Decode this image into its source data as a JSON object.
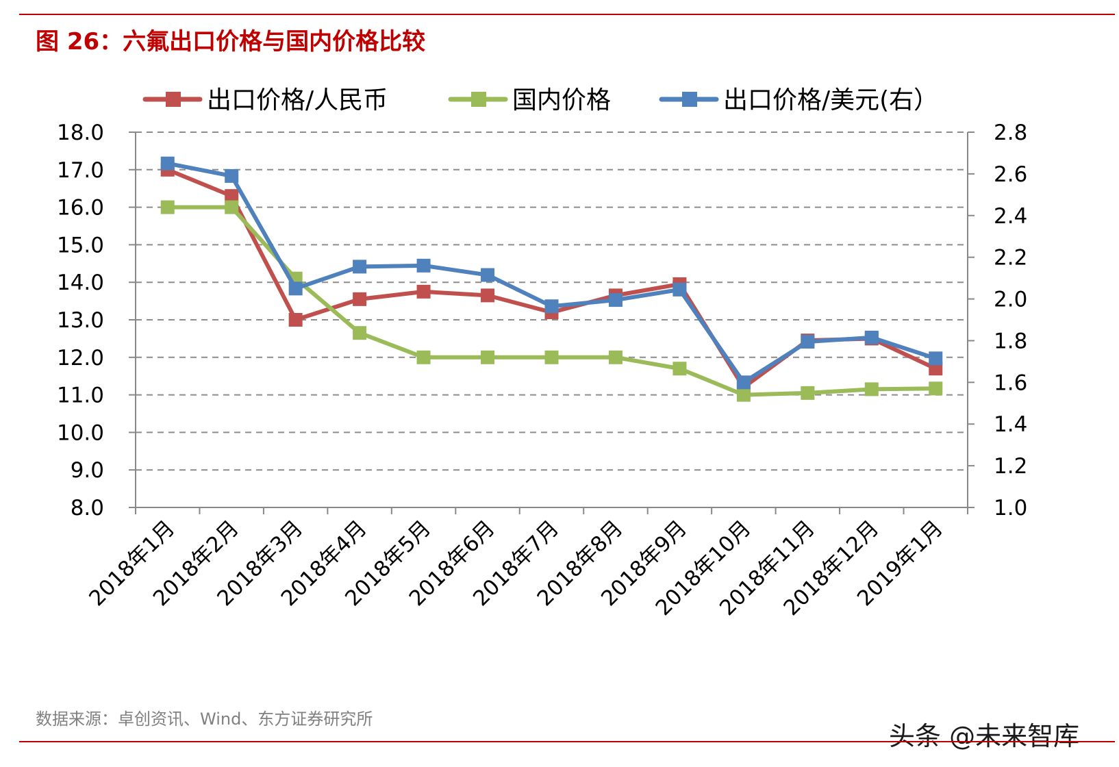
{
  "header": {
    "title": "图 26：六氟出口价格与国内价格比较"
  },
  "footer": {
    "source": "数据来源：卓创资讯、Wind、东方证券研究所",
    "watermark": "头条 @未来智库"
  },
  "chart_data": {
    "type": "line",
    "categories": [
      "2018年1月",
      "2018年2月",
      "2018年3月",
      "2018年4月",
      "2018年5月",
      "2018年6月",
      "2018年7月",
      "2018年8月",
      "2018年9月",
      "2018年10月",
      "2018年11月",
      "2018年12月",
      "2019年1月"
    ],
    "y_left": {
      "range": [
        8.0,
        18.0
      ],
      "ticks": [
        "8.0",
        "9.0",
        "10.0",
        "11.0",
        "12.0",
        "13.0",
        "14.0",
        "15.0",
        "16.0",
        "17.0",
        "18.0"
      ]
    },
    "y_right": {
      "range": [
        1.0,
        2.8
      ],
      "ticks": [
        "1.0",
        "1.2",
        "1.4",
        "1.6",
        "1.8",
        "2.0",
        "2.2",
        "2.4",
        "2.6",
        "2.8"
      ]
    },
    "grid": "horizontal-dashed",
    "legend_position": "top",
    "series": [
      {
        "name": "出口价格/人民币",
        "axis": "left",
        "color": "#c0504d",
        "values": [
          17.0,
          16.3,
          13.0,
          13.55,
          13.75,
          13.65,
          13.2,
          13.65,
          13.95,
          11.2,
          12.45,
          12.5,
          11.7
        ]
      },
      {
        "name": "国内价格",
        "axis": "left",
        "color": "#9bbb59",
        "values": [
          16.0,
          16.0,
          14.1,
          12.65,
          12.0,
          12.0,
          12.0,
          12.0,
          11.7,
          11.0,
          11.05,
          11.15,
          11.17
        ]
      },
      {
        "name": "出口价格/美元(右）",
        "axis": "right",
        "color": "#4f81bd",
        "values": [
          2.65,
          2.59,
          2.05,
          2.155,
          2.16,
          2.115,
          1.965,
          1.995,
          2.045,
          1.6,
          1.795,
          1.815,
          1.715
        ]
      }
    ]
  }
}
